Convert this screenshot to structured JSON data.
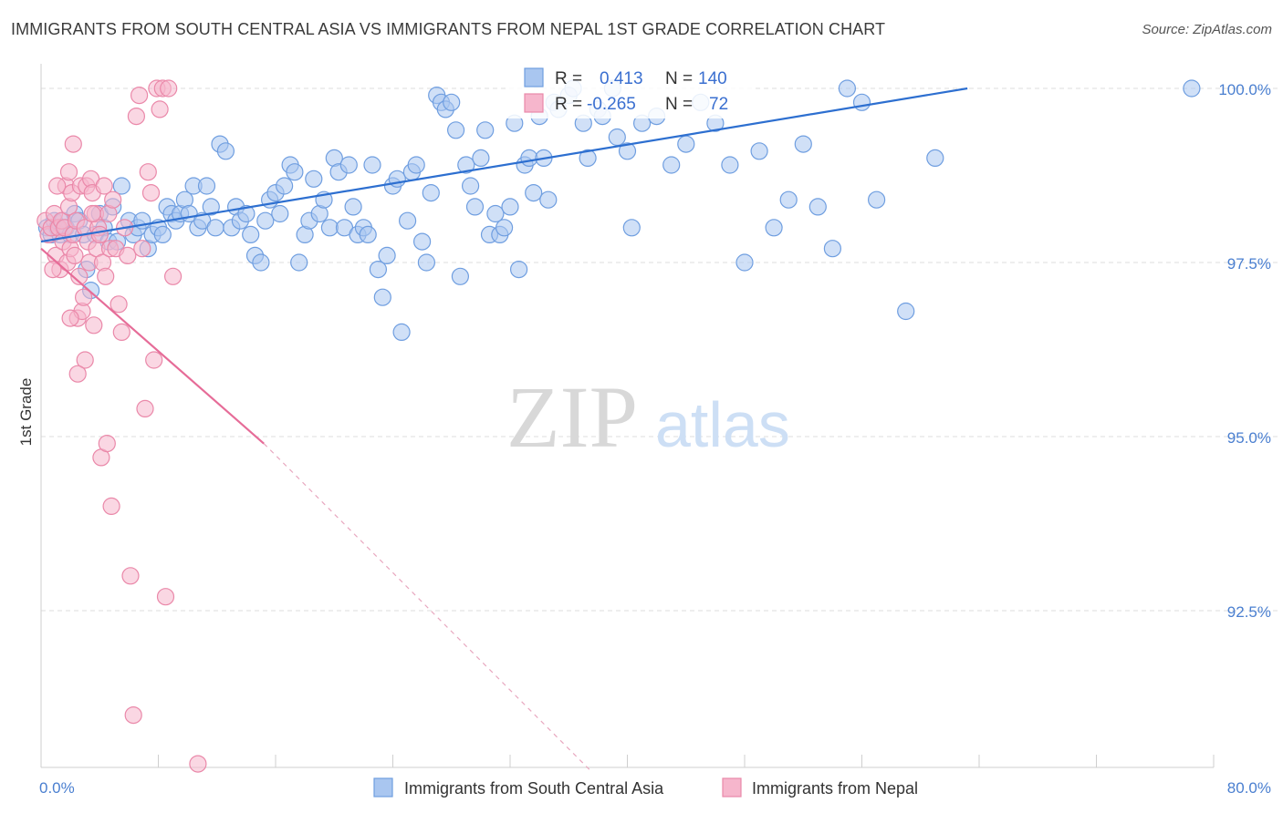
{
  "title": "IMMIGRANTS FROM SOUTH CENTRAL ASIA VS IMMIGRANTS FROM NEPAL 1ST GRADE CORRELATION CHART",
  "source": "Source: ZipAtlas.com",
  "watermark": {
    "zip": "ZIP",
    "atlas": "atlas"
  },
  "colors": {
    "blue_fill": "#a9c6f0",
    "blue_stroke": "#6f9ee0",
    "blue_line": "#2d6fd0",
    "pink_fill": "#f6b6cc",
    "pink_stroke": "#ea88a9",
    "pink_line": "#e66c98",
    "tick_text": "#4a7fd0",
    "grid": "#dcdcdc"
  },
  "stats": {
    "r_label": "R =",
    "n_label": "N =",
    "rows": [
      {
        "r": "0.413",
        "n": "140"
      },
      {
        "r": "-0.265",
        "n": "72"
      }
    ]
  },
  "legend": [
    "Immigrants from South Central Asia",
    "Immigrants from Nepal"
  ],
  "chart_data": {
    "type": "scatter",
    "title": "IMMIGRANTS FROM SOUTH CENTRAL ASIA VS IMMIGRANTS FROM NEPAL 1ST GRADE CORRELATION CHART",
    "xlabel": "",
    "ylabel": "1st Grade",
    "xlim": [
      0,
      80
    ],
    "ylim": [
      90.2,
      100.6
    ],
    "x_tick_labels": [
      {
        "value": 0,
        "label": "0.0%"
      },
      {
        "value": 80,
        "label": "80.0%"
      }
    ],
    "x_minor_ticks": [
      8,
      16,
      24,
      32,
      40,
      48,
      56,
      64,
      72,
      80
    ],
    "y_ticks": [
      {
        "value": 100,
        "label": "100.0%"
      },
      {
        "value": 97.5,
        "label": "97.5%"
      },
      {
        "value": 95,
        "label": "95.0%"
      },
      {
        "value": 92.5,
        "label": "92.5%"
      }
    ],
    "grid": true,
    "legend_position": "bottom",
    "series": [
      {
        "name": "Immigrants from South Central Asia",
        "color": "#a9c6f0",
        "trend": {
          "x": [
            0,
            63.2
          ],
          "y": [
            97.8,
            100.0
          ],
          "style": "solid"
        },
        "points": [
          [
            0.4,
            98.0
          ],
          [
            0.7,
            97.9
          ],
          [
            0.9,
            98.1
          ],
          [
            1.1,
            98.0
          ],
          [
            1.3,
            97.9
          ],
          [
            1.5,
            98.1
          ],
          [
            1.7,
            98.0
          ],
          [
            2.0,
            97.9
          ],
          [
            2.3,
            98.2
          ],
          [
            2.6,
            98.1
          ],
          [
            2.9,
            97.9
          ],
          [
            3.1,
            97.4
          ],
          [
            3.4,
            97.1
          ],
          [
            3.7,
            97.9
          ],
          [
            4.0,
            98.2
          ],
          [
            4.3,
            98.0
          ],
          [
            4.6,
            97.8
          ],
          [
            4.9,
            98.3
          ],
          [
            5.2,
            97.8
          ],
          [
            5.5,
            98.6
          ],
          [
            6.0,
            98.1
          ],
          [
            6.3,
            97.9
          ],
          [
            6.6,
            98.0
          ],
          [
            6.9,
            98.1
          ],
          [
            7.3,
            97.7
          ],
          [
            7.6,
            97.9
          ],
          [
            8.0,
            98.0
          ],
          [
            8.3,
            97.9
          ],
          [
            8.6,
            98.3
          ],
          [
            8.9,
            98.2
          ],
          [
            9.2,
            98.1
          ],
          [
            9.5,
            98.2
          ],
          [
            9.8,
            98.4
          ],
          [
            10.1,
            98.2
          ],
          [
            10.4,
            98.6
          ],
          [
            10.7,
            98.0
          ],
          [
            11.0,
            98.1
          ],
          [
            11.3,
            98.6
          ],
          [
            11.6,
            98.3
          ],
          [
            11.9,
            98.0
          ],
          [
            12.2,
            99.2
          ],
          [
            12.6,
            99.1
          ],
          [
            13.0,
            98.0
          ],
          [
            13.3,
            98.3
          ],
          [
            13.6,
            98.1
          ],
          [
            14.0,
            98.2
          ],
          [
            14.3,
            97.9
          ],
          [
            14.6,
            97.6
          ],
          [
            15.0,
            97.5
          ],
          [
            15.3,
            98.1
          ],
          [
            15.6,
            98.4
          ],
          [
            16.0,
            98.5
          ],
          [
            16.3,
            98.2
          ],
          [
            16.6,
            98.6
          ],
          [
            17.0,
            98.9
          ],
          [
            17.3,
            98.8
          ],
          [
            17.6,
            97.5
          ],
          [
            18.0,
            97.9
          ],
          [
            18.3,
            98.1
          ],
          [
            18.6,
            98.7
          ],
          [
            19.0,
            98.2
          ],
          [
            19.3,
            98.4
          ],
          [
            19.7,
            98.0
          ],
          [
            20.0,
            99.0
          ],
          [
            20.3,
            98.8
          ],
          [
            20.7,
            98.0
          ],
          [
            21.0,
            98.9
          ],
          [
            21.3,
            98.3
          ],
          [
            21.6,
            97.9
          ],
          [
            22.0,
            98.0
          ],
          [
            22.3,
            97.9
          ],
          [
            22.6,
            98.9
          ],
          [
            23.0,
            97.4
          ],
          [
            23.3,
            97.0
          ],
          [
            23.6,
            97.6
          ],
          [
            24.0,
            98.6
          ],
          [
            24.3,
            98.7
          ],
          [
            24.6,
            96.5
          ],
          [
            25.0,
            98.1
          ],
          [
            25.3,
            98.8
          ],
          [
            25.6,
            98.9
          ],
          [
            26.0,
            97.8
          ],
          [
            26.3,
            97.5
          ],
          [
            26.6,
            98.5
          ],
          [
            27.0,
            99.9
          ],
          [
            27.3,
            99.8
          ],
          [
            27.6,
            99.7
          ],
          [
            28.0,
            99.8
          ],
          [
            28.3,
            99.4
          ],
          [
            28.6,
            97.3
          ],
          [
            29.0,
            98.9
          ],
          [
            29.3,
            98.6
          ],
          [
            29.6,
            98.3
          ],
          [
            30.0,
            99.0
          ],
          [
            30.3,
            99.4
          ],
          [
            30.6,
            97.9
          ],
          [
            31.0,
            98.2
          ],
          [
            31.3,
            97.9
          ],
          [
            31.6,
            98.0
          ],
          [
            32.0,
            98.3
          ],
          [
            32.3,
            99.5
          ],
          [
            32.6,
            97.4
          ],
          [
            33.0,
            98.9
          ],
          [
            33.3,
            99.0
          ],
          [
            33.6,
            98.5
          ],
          [
            34.0,
            99.6
          ],
          [
            34.3,
            99.0
          ],
          [
            34.6,
            98.4
          ],
          [
            35.0,
            99.8
          ],
          [
            35.3,
            99.7
          ],
          [
            36.0,
            99.9
          ],
          [
            36.3,
            100.0
          ],
          [
            37.0,
            99.5
          ],
          [
            37.3,
            99.0
          ],
          [
            38.0,
            99.7
          ],
          [
            38.3,
            99.6
          ],
          [
            39.0,
            100.0
          ],
          [
            39.3,
            99.3
          ],
          [
            40.0,
            99.1
          ],
          [
            40.3,
            98.0
          ],
          [
            41.0,
            99.5
          ],
          [
            42.0,
            99.6
          ],
          [
            43.0,
            98.9
          ],
          [
            44.0,
            99.2
          ],
          [
            45.0,
            99.8
          ],
          [
            46.0,
            99.5
          ],
          [
            47.0,
            98.9
          ],
          [
            48.0,
            97.5
          ],
          [
            49.0,
            99.1
          ],
          [
            50.0,
            98.0
          ],
          [
            51.0,
            98.4
          ],
          [
            52.0,
            99.2
          ],
          [
            53.0,
            98.3
          ],
          [
            54.0,
            97.7
          ],
          [
            55.0,
            100.0
          ],
          [
            56.0,
            99.8
          ],
          [
            57.0,
            98.4
          ],
          [
            59.0,
            96.8
          ],
          [
            61.0,
            99.0
          ],
          [
            78.5,
            100.0
          ]
        ]
      },
      {
        "name": "Immigrants from Nepal",
        "color": "#f6b6cc",
        "trend": {
          "x": [
            0,
            15.2
          ],
          "y": [
            97.7,
            94.9
          ],
          "style": "solid"
        },
        "trend_extension": {
          "x": [
            15.2,
            37.5
          ],
          "y": [
            94.9,
            90.2
          ],
          "style": "dashed"
        },
        "points": [
          [
            0.3,
            98.1
          ],
          [
            0.5,
            97.9
          ],
          [
            0.7,
            98.0
          ],
          [
            0.9,
            98.2
          ],
          [
            1.0,
            97.6
          ],
          [
            1.2,
            98.0
          ],
          [
            1.3,
            97.4
          ],
          [
            1.4,
            98.1
          ],
          [
            1.5,
            97.8
          ],
          [
            1.6,
            98.0
          ],
          [
            1.7,
            98.6
          ],
          [
            1.8,
            97.5
          ],
          [
            1.9,
            98.3
          ],
          [
            2.0,
            97.7
          ],
          [
            2.1,
            98.5
          ],
          [
            2.2,
            97.9
          ],
          [
            2.3,
            97.6
          ],
          [
            2.4,
            98.1
          ],
          [
            2.5,
            96.7
          ],
          [
            2.6,
            97.3
          ],
          [
            2.7,
            98.6
          ],
          [
            2.8,
            96.8
          ],
          [
            2.9,
            97.0
          ],
          [
            3.0,
            98.0
          ],
          [
            3.1,
            98.6
          ],
          [
            3.2,
            97.8
          ],
          [
            3.3,
            97.5
          ],
          [
            3.4,
            98.7
          ],
          [
            3.5,
            98.5
          ],
          [
            3.6,
            96.6
          ],
          [
            3.7,
            98.2
          ],
          [
            3.8,
            97.7
          ],
          [
            3.9,
            98.0
          ],
          [
            4.0,
            97.9
          ],
          [
            4.1,
            94.7
          ],
          [
            4.2,
            97.5
          ],
          [
            4.3,
            98.6
          ],
          [
            4.4,
            97.3
          ],
          [
            4.5,
            94.9
          ],
          [
            4.6,
            98.2
          ],
          [
            4.7,
            97.7
          ],
          [
            4.8,
            94.0
          ],
          [
            4.9,
            98.4
          ],
          [
            5.1,
            97.7
          ],
          [
            5.3,
            96.9
          ],
          [
            5.5,
            96.5
          ],
          [
            5.7,
            98.0
          ],
          [
            5.9,
            97.6
          ],
          [
            6.1,
            93.0
          ],
          [
            6.3,
            91.0
          ],
          [
            6.5,
            99.6
          ],
          [
            6.7,
            99.9
          ],
          [
            6.9,
            97.7
          ],
          [
            7.1,
            95.4
          ],
          [
            7.3,
            98.8
          ],
          [
            7.5,
            98.5
          ],
          [
            7.7,
            96.1
          ],
          [
            7.9,
            100.0
          ],
          [
            8.1,
            99.7
          ],
          [
            8.3,
            100.0
          ],
          [
            8.5,
            92.7
          ],
          [
            8.7,
            100.0
          ],
          [
            9.0,
            97.3
          ],
          [
            10.7,
            90.3
          ],
          [
            2.0,
            96.7
          ],
          [
            2.2,
            99.2
          ],
          [
            3.0,
            96.1
          ],
          [
            2.5,
            95.9
          ],
          [
            1.1,
            98.6
          ],
          [
            0.8,
            97.4
          ],
          [
            1.9,
            98.8
          ],
          [
            3.5,
            98.2
          ]
        ]
      }
    ]
  }
}
